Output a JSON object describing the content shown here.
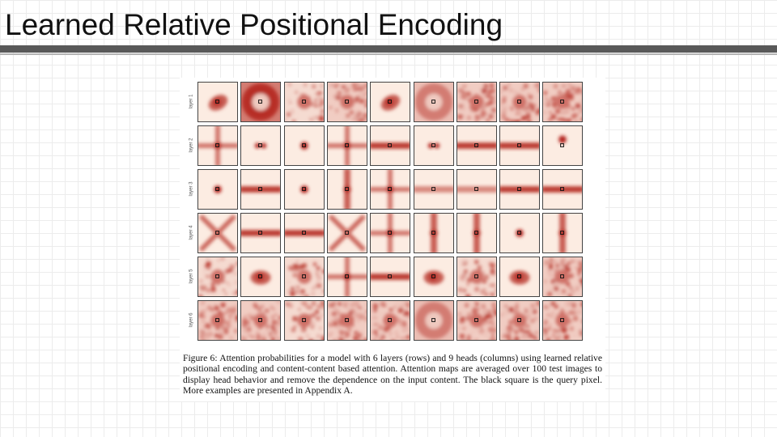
{
  "slide": {
    "title": "Learned Relative Positional Encoding"
  },
  "figure": {
    "rows": [
      {
        "label": "layer 1"
      },
      {
        "label": "layer 2"
      },
      {
        "label": "layer 3"
      },
      {
        "label": "layer 4"
      },
      {
        "label": "layer 5"
      },
      {
        "label": "layer 6"
      }
    ],
    "heads_per_row": 9,
    "patterns": [
      [
        "blob-diag",
        "dark-ring",
        "fuzzy",
        "noisy",
        "blob-diag",
        "ring-soft",
        "noisy",
        "noisy",
        "noisy"
      ],
      [
        "cross",
        "dot-pair",
        "dot",
        "cross",
        "band-h",
        "dot-pair",
        "band-h",
        "band-h",
        "dot-top"
      ],
      [
        "dot",
        "band-h",
        "dot",
        "band-v",
        "cross",
        "band-h-light",
        "band-h-light",
        "band-h",
        "band-h"
      ],
      [
        "x-shape",
        "band-h",
        "band-h",
        "x-shape",
        "cross",
        "band-v",
        "band-v",
        "dot",
        "band-v"
      ],
      [
        "fuzzy",
        "blob",
        "fuzzy",
        "cross",
        "band-h",
        "blob",
        "fuzzy",
        "blob",
        "noisy"
      ],
      [
        "noisy",
        "noisy",
        "fuzzy",
        "noisy",
        "noisy",
        "ring-soft",
        "noisy",
        "noisy",
        "noisy"
      ]
    ],
    "caption": {
      "lead": "Figure 6:",
      "text": "Attention probabilities for a model with 6 layers (rows) and 9 heads (columns) using learned relative positional encoding and content-content based attention. Attention maps are averaged over 100 test images to display head behavior and remove the dependence on the input content. The black square is the query pixel. More examples are presented in Appendix A."
    }
  }
}
